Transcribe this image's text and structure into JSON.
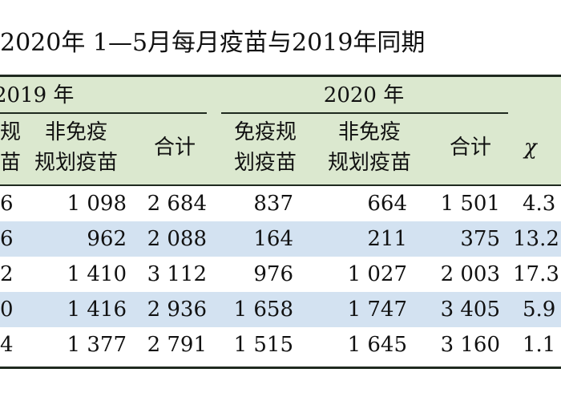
{
  "caption": "2020年 1—5月每月疫苗与2019年同期",
  "header": {
    "year_2019": "2019 年",
    "year_2020": "2020 年",
    "col_2019_immune_part1": "规",
    "col_2019_immune_part2": "苗",
    "col_2019_nonimmune_line1": "非免疫",
    "col_2019_nonimmune_line2": "规划疫苗",
    "col_2019_total": "合计",
    "col_2020_immune_line1": "免疫规",
    "col_2020_immune_line2": "划疫苗",
    "col_2020_nonimmune_line1": "非免疫",
    "col_2020_nonimmune_line2": "规划疫苗",
    "col_2020_total": "合计",
    "col_chi": "χ"
  },
  "rows": [
    {
      "left": "6",
      "nonimmune_2019": "1 098",
      "total_2019": "2 684",
      "immune_2020": "837",
      "nonimmune_2020": "664",
      "total_2020": "1 501",
      "chi": "4.3"
    },
    {
      "left": "6",
      "nonimmune_2019": "962",
      "total_2019": "2 088",
      "immune_2020": "164",
      "nonimmune_2020": "211",
      "total_2020": "375",
      "chi": "13.2"
    },
    {
      "left": "2",
      "nonimmune_2019": "1 410",
      "total_2019": "3 112",
      "immune_2020": "976",
      "nonimmune_2020": "1 027",
      "total_2020": "2 003",
      "chi": "17.3"
    },
    {
      "left": "0",
      "nonimmune_2019": "1 416",
      "total_2019": "2 936",
      "immune_2020": "1 658",
      "nonimmune_2020": "1 747",
      "total_2020": "3 405",
      "chi": "5.9"
    },
    {
      "left": "4",
      "nonimmune_2019": "1 377",
      "total_2019": "2 791",
      "immune_2020": "1 515",
      "nonimmune_2020": "1 645",
      "total_2020": "3 160",
      "chi": "1.1"
    }
  ]
}
